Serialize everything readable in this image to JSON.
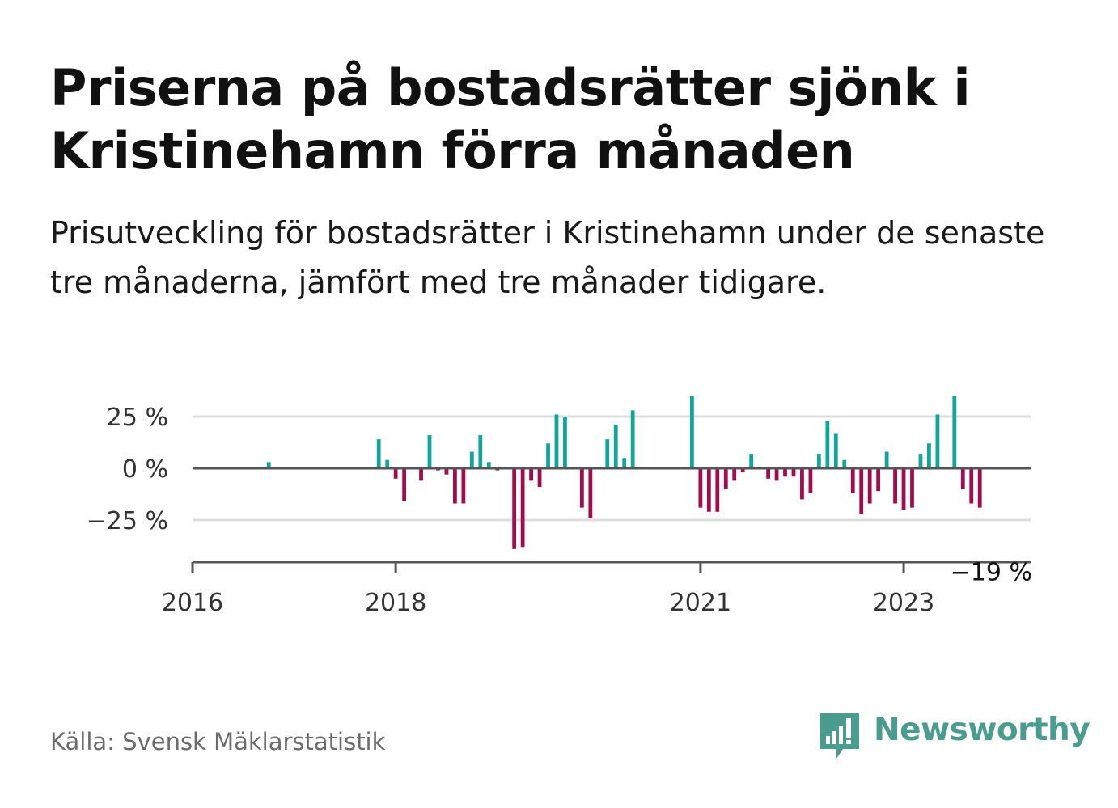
{
  "title": "Priserna på bostadsrätter sjönk i Kristinehamn förra månaden",
  "subtitle": "Prisutveckling för bostadsrätter i Kristinehamn under de senaste tre månaderna, jämfört med tre månader tidigare.",
  "source": "Källa: Svensk Mäklarstatistik",
  "brand": "Newsworthy",
  "colors": {
    "positive": "#13a598",
    "negative": "#a10d4c",
    "grid": "#dddddd",
    "axis": "#555555",
    "brand": "#4a9c8e"
  },
  "chart_data": {
    "type": "bar",
    "x_unit": "month",
    "xlim": [
      "2016-01",
      "2024-04"
    ],
    "ylim": [
      -43,
      40
    ],
    "y_ticks": [
      {
        "value": 25,
        "label": "25 %"
      },
      {
        "value": 0,
        "label": "0 %"
      },
      {
        "value": -25,
        "label": "−25 %"
      }
    ],
    "x_ticks": [
      {
        "value": "2016-01",
        "label": "2016"
      },
      {
        "value": "2018-01",
        "label": "2018"
      },
      {
        "value": "2021-01",
        "label": "2021"
      },
      {
        "value": "2023-01",
        "label": "2023"
      }
    ],
    "x": [
      "2016-10",
      "2017-11",
      "2017-12",
      "2018-01",
      "2018-02",
      "2018-04",
      "2018-05",
      "2018-06",
      "2018-07",
      "2018-08",
      "2018-09",
      "2018-10",
      "2018-11",
      "2018-12",
      "2019-01",
      "2019-03",
      "2019-04",
      "2019-05",
      "2019-06",
      "2019-07",
      "2019-08",
      "2019-09",
      "2019-11",
      "2019-12",
      "2020-02",
      "2020-03",
      "2020-04",
      "2020-05",
      "2020-12",
      "2021-01",
      "2021-02",
      "2021-03",
      "2021-04",
      "2021-05",
      "2021-06",
      "2021-07",
      "2021-09",
      "2021-10",
      "2021-11",
      "2021-12",
      "2022-01",
      "2022-02",
      "2022-03",
      "2022-04",
      "2022-05",
      "2022-06",
      "2022-07",
      "2022-08",
      "2022-09",
      "2022-10",
      "2022-11",
      "2022-12",
      "2023-01",
      "2023-02",
      "2023-03",
      "2023-04",
      "2023-05",
      "2023-07",
      "2023-08",
      "2023-09",
      "2023-10"
    ],
    "values": [
      3,
      14,
      4,
      -5,
      -16,
      -6,
      16,
      -1,
      -3,
      -17,
      -17,
      8,
      16,
      3,
      -1,
      -39,
      -38,
      -6,
      -9,
      12,
      26,
      25,
      -19,
      -24,
      14,
      21,
      5,
      28,
      35,
      -19,
      -21,
      -21,
      -10,
      -6,
      -2,
      7,
      -5,
      -6,
      -4,
      -4,
      -15,
      -12,
      7,
      23,
      17,
      4,
      -12,
      -22,
      -17,
      -11,
      8,
      -17,
      -20,
      -19,
      7,
      12,
      26,
      35,
      -10,
      -17,
      -19
    ],
    "annotation": {
      "x": "2023-10",
      "value": -19,
      "label": "−19 %"
    }
  }
}
